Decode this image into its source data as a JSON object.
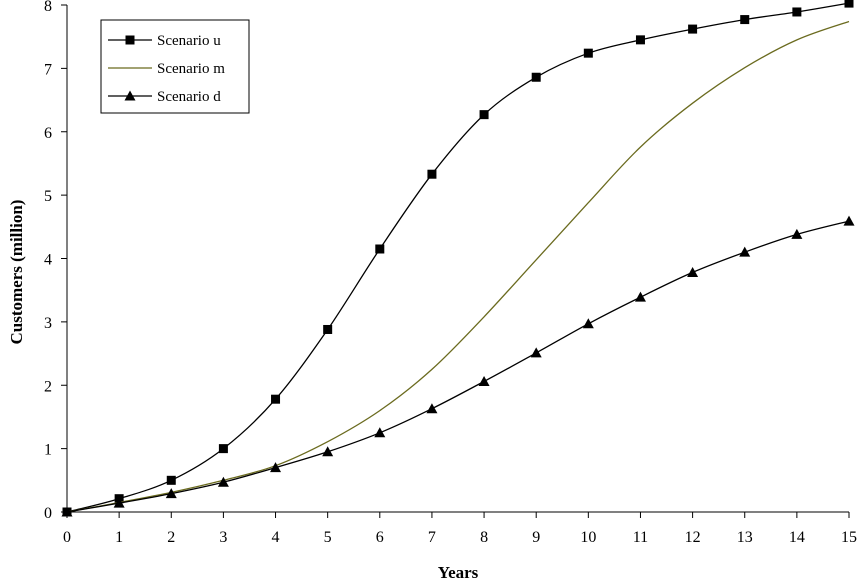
{
  "chart_data": {
    "type": "line",
    "xlabel": "Years",
    "ylabel": "Customers (million)",
    "xlim": [
      0,
      15
    ],
    "ylim": [
      0,
      8
    ],
    "grid": false,
    "legend_position": "top-left",
    "x_ticks": [
      "0",
      "1",
      "2",
      "3",
      "4",
      "5",
      "6",
      "7",
      "8",
      "9",
      "10",
      "11",
      "12",
      "13",
      "14",
      "15"
    ],
    "y_ticks": [
      "0",
      "1",
      "2",
      "3",
      "4",
      "5",
      "6",
      "7",
      "8"
    ],
    "x": [
      0,
      1,
      2,
      3,
      4,
      5,
      6,
      7,
      8,
      9,
      10,
      11,
      12,
      13,
      14,
      15
    ],
    "series": [
      {
        "name": "Scenario u",
        "marker": "square",
        "color": "#000000",
        "values": [
          0,
          0.21,
          0.5,
          1.0,
          1.78,
          2.88,
          4.15,
          5.33,
          6.27,
          6.86,
          7.24,
          7.45,
          7.62,
          7.77,
          7.89,
          8.03
        ]
      },
      {
        "name": "Scenario m",
        "marker": "none",
        "color": "#6b6b1f",
        "values": [
          0,
          0.15,
          0.31,
          0.5,
          0.73,
          1.11,
          1.6,
          2.25,
          3.08,
          3.98,
          4.88,
          5.76,
          6.45,
          7.01,
          7.45,
          7.74
        ]
      },
      {
        "name": "Scenario d",
        "marker": "triangle",
        "color": "#000000",
        "values": [
          0,
          0.14,
          0.29,
          0.47,
          0.7,
          0.95,
          1.25,
          1.63,
          2.06,
          2.51,
          2.97,
          3.39,
          3.78,
          4.1,
          4.38,
          4.59
        ]
      }
    ]
  }
}
